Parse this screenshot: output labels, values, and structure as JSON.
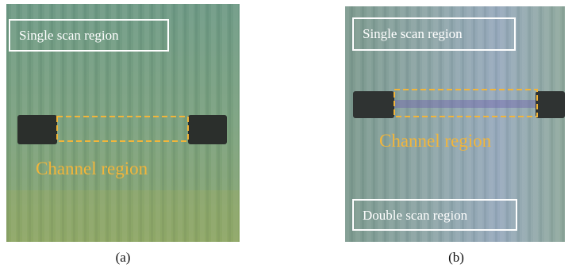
{
  "panels": [
    {
      "top_label": "Single scan region",
      "channel_label": "Channel region",
      "caption": "(a)"
    },
    {
      "top_label": "Single scan region",
      "channel_label": "Channel region",
      "bottom_label": "Double scan region",
      "caption": "(b)"
    }
  ]
}
